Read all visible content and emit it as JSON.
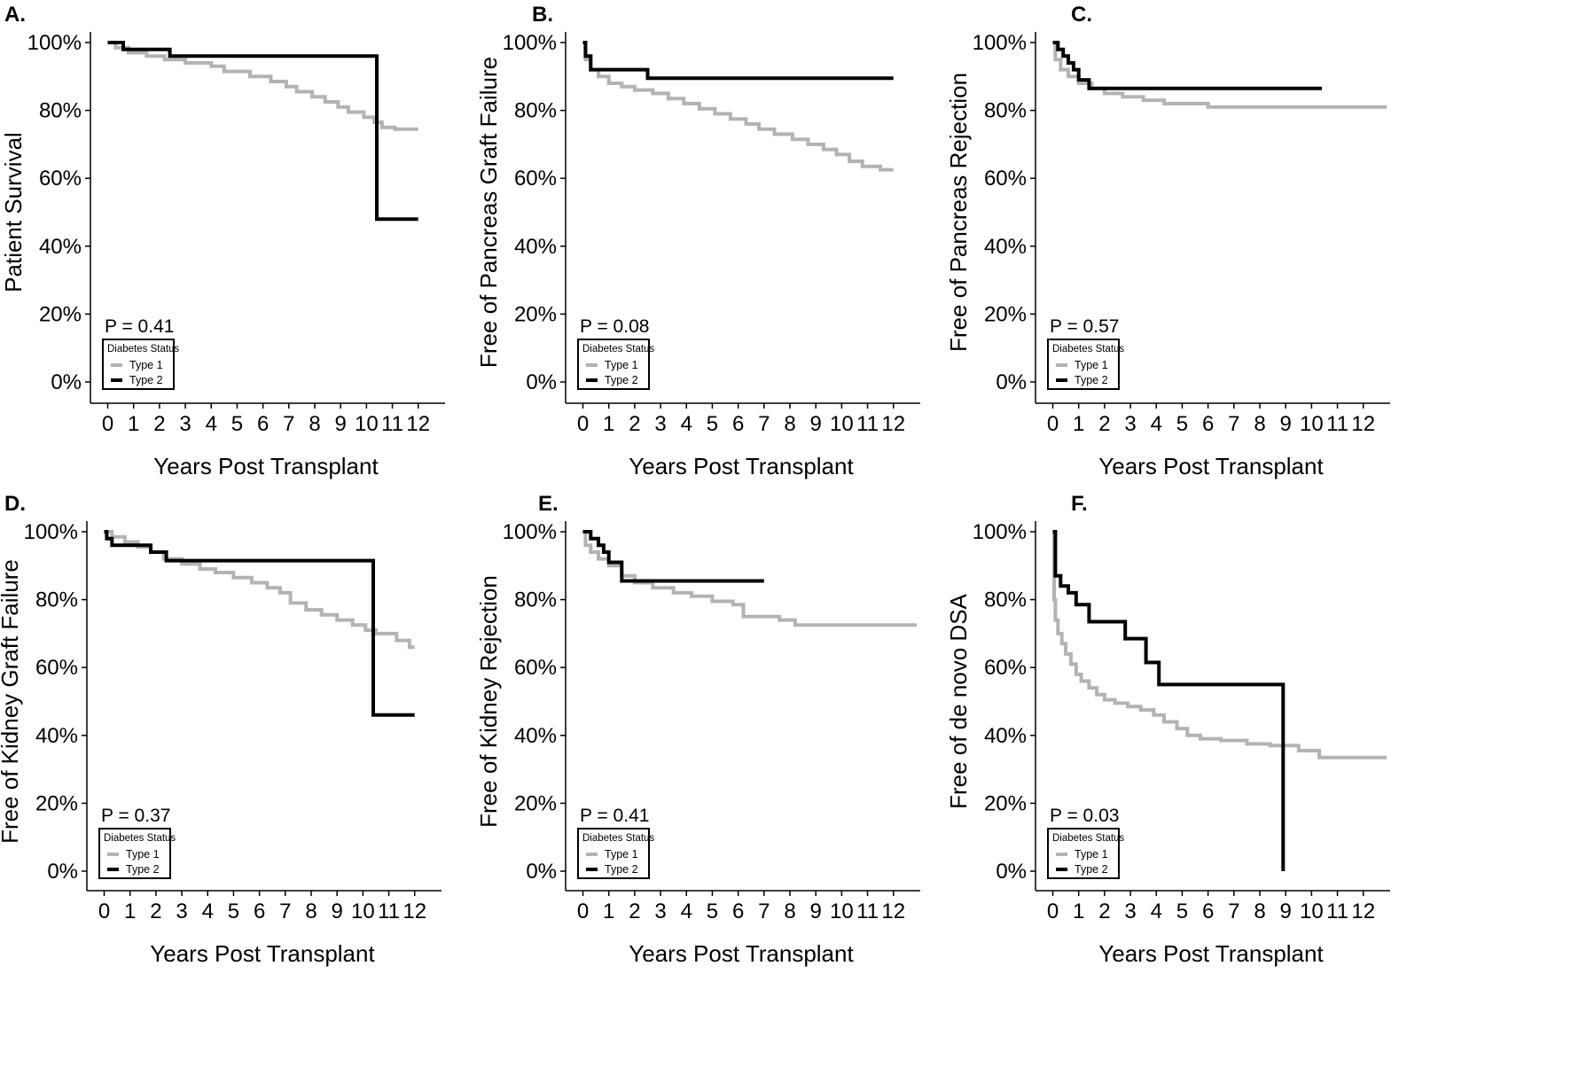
{
  "colors": {
    "type1": "#b3b3b3",
    "type2": "#000000"
  },
  "legend": {
    "title": "Diabetes Status",
    "labels": [
      "Type 1",
      "Type 2"
    ]
  },
  "chart_data": [
    {
      "type": "line",
      "step": true,
      "panel_label": "A.",
      "ylabel": "Patient Survival",
      "xlabel": "Years Post Transplant",
      "xticks": [
        "0",
        "1",
        "2",
        "3",
        "4",
        "5",
        "6",
        "7",
        "8",
        "9",
        "10",
        "11",
        "12"
      ],
      "yticks": [
        "0%",
        "20%",
        "40%",
        "60%",
        "80%",
        "100%"
      ],
      "xlim": [
        -0.6,
        12.9
      ],
      "ylim": [
        0,
        100
      ],
      "p_value": "P = 0.41",
      "series": [
        {
          "name": "Type 1",
          "x": [
            0,
            0.3,
            0.8,
            1.5,
            2.2,
            3,
            4,
            4.5,
            5.5,
            6.3,
            6.9,
            7.3,
            7.9,
            8.4,
            8.9,
            9.3,
            9.9,
            10.3,
            10.6,
            11.1,
            12
          ],
          "y": [
            100,
            98.5,
            97,
            96,
            95,
            94,
            93,
            91.5,
            90,
            88.5,
            87,
            85.5,
            84,
            82.5,
            81,
            79.5,
            78,
            76.5,
            75,
            74.5,
            74.5
          ]
        },
        {
          "name": "Type 2",
          "x": [
            0,
            0.6,
            2.4,
            10.4,
            12
          ],
          "y": [
            100,
            98,
            96,
            48,
            48
          ]
        }
      ]
    },
    {
      "type": "line",
      "step": true,
      "panel_label": "B.",
      "ylabel": "Free of Pancreas Graft Failure",
      "xlabel": "Years Post Transplant",
      "xticks": [
        "0",
        "1",
        "2",
        "3",
        "4",
        "5",
        "6",
        "7",
        "8",
        "9",
        "10",
        "11",
        "12"
      ],
      "yticks": [
        "0%",
        "20%",
        "40%",
        "60%",
        "80%",
        "100%"
      ],
      "xlim": [
        -0.6,
        12.9
      ],
      "ylim": [
        0,
        100
      ],
      "p_value": "P = 0.08",
      "series": [
        {
          "name": "Type 1",
          "x": [
            0,
            0.1,
            0.3,
            0.6,
            1,
            1.5,
            2,
            2.7,
            3.3,
            3.9,
            4.5,
            5.1,
            5.7,
            6.3,
            6.8,
            7.4,
            8.1,
            8.7,
            9.3,
            9.8,
            10.3,
            10.8,
            11.5,
            12
          ],
          "y": [
            100,
            95,
            92,
            90,
            88,
            87,
            86,
            85,
            83.5,
            82,
            80.5,
            79,
            77.5,
            76,
            74.5,
            73,
            71.5,
            70,
            68.5,
            67,
            65,
            63.5,
            62.5,
            62.5
          ]
        },
        {
          "name": "Type 2",
          "x": [
            0,
            0.1,
            0.3,
            2.5,
            12
          ],
          "y": [
            100,
            96,
            92,
            89.5,
            89.5
          ]
        }
      ]
    },
    {
      "type": "line",
      "step": true,
      "panel_label": "C.",
      "ylabel": "Free of Pancreas Rejection",
      "xlabel": "Years Post Transplant",
      "xticks": [
        "0",
        "1",
        "2",
        "3",
        "4",
        "5",
        "6",
        "7",
        "8",
        "9",
        "10",
        "11",
        "12"
      ],
      "yticks": [
        "0%",
        "20%",
        "40%",
        "60%",
        "80%",
        "100%"
      ],
      "xlim": [
        -0.6,
        12.9
      ],
      "ylim": [
        0,
        100
      ],
      "p_value": "P = 0.57",
      "series": [
        {
          "name": "Type 1",
          "x": [
            0,
            0.1,
            0.3,
            0.6,
            1,
            1.5,
            2,
            2.7,
            3.5,
            4.3,
            6,
            7,
            12.9
          ],
          "y": [
            100,
            95,
            92,
            90,
            88,
            86.5,
            85,
            84,
            83,
            82,
            81,
            81,
            81
          ]
        },
        {
          "name": "Type 2",
          "x": [
            0,
            0.2,
            0.4,
            0.6,
            0.8,
            1,
            1.4,
            10.4
          ],
          "y": [
            100,
            98,
            96,
            94,
            92,
            89,
            86.5,
            86.5
          ]
        }
      ]
    },
    {
      "type": "line",
      "step": true,
      "panel_label": "D.",
      "ylabel": "Free of Kidney Graft Failure",
      "xlabel": "Years Post Transplant",
      "xticks": [
        "0",
        "1",
        "2",
        "3",
        "4",
        "5",
        "6",
        "7",
        "8",
        "9",
        "10",
        "11",
        "12"
      ],
      "yticks": [
        "0%",
        "20%",
        "40%",
        "60%",
        "80%",
        "100%"
      ],
      "xlim": [
        -0.6,
        12.9
      ],
      "ylim": [
        0,
        100
      ],
      "p_value": "P = 0.37",
      "series": [
        {
          "name": "Type 1",
          "x": [
            0,
            0.3,
            0.8,
            1.3,
            1.8,
            2.3,
            3,
            3.7,
            4.3,
            5,
            5.7,
            6.3,
            6.8,
            7.2,
            7.8,
            8.4,
            9,
            9.6,
            10.1,
            10.5,
            11.3,
            11.8,
            12
          ],
          "y": [
            100,
            98.5,
            97,
            95.5,
            94,
            92,
            90.5,
            89,
            88,
            86.5,
            85,
            83.5,
            82,
            79,
            77,
            75.5,
            74,
            72.5,
            71,
            70,
            68,
            66,
            66
          ]
        },
        {
          "name": "Type 2",
          "x": [
            0,
            0.1,
            0.3,
            1.8,
            2.4,
            10.4,
            12
          ],
          "y": [
            100,
            98,
            96,
            94,
            91.5,
            46,
            46
          ]
        }
      ]
    },
    {
      "type": "line",
      "step": true,
      "panel_label": "E.",
      "ylabel": "Free of Kidney Rejection",
      "xlabel": "Years Post Transplant",
      "xticks": [
        "0",
        "1",
        "2",
        "3",
        "4",
        "5",
        "6",
        "7",
        "8",
        "9",
        "10",
        "11",
        "12"
      ],
      "yticks": [
        "0%",
        "20%",
        "40%",
        "60%",
        "80%",
        "100%"
      ],
      "xlim": [
        -0.6,
        12.9
      ],
      "ylim": [
        0,
        100
      ],
      "p_value": "P = 0.41",
      "series": [
        {
          "name": "Type 1",
          "x": [
            0,
            0.1,
            0.3,
            0.6,
            1,
            1.5,
            2,
            2.7,
            3.5,
            4.2,
            5,
            5.8,
            6.2,
            7,
            7.6,
            8.2,
            12.9
          ],
          "y": [
            100,
            96,
            94,
            92,
            90,
            87,
            85,
            83.5,
            82,
            81,
            79.5,
            78.5,
            75,
            75,
            74,
            72.5,
            72.5
          ]
        },
        {
          "name": "Type 2",
          "x": [
            0,
            0.3,
            0.6,
            0.8,
            1,
            1.5,
            7
          ],
          "y": [
            100,
            98,
            96,
            94,
            91,
            85.5,
            85.5
          ]
        }
      ]
    },
    {
      "type": "line",
      "step": true,
      "panel_label": "F.",
      "ylabel": "Free of de novo DSA",
      "xlabel": "Years Post Transplant",
      "xticks": [
        "0",
        "1",
        "2",
        "3",
        "4",
        "5",
        "6",
        "7",
        "8",
        "9",
        "10",
        "11",
        "12"
      ],
      "yticks": [
        "0%",
        "20%",
        "40%",
        "60%",
        "80%",
        "100%"
      ],
      "xlim": [
        -0.6,
        12.9
      ],
      "ylim": [
        0,
        100
      ],
      "p_value": "P = 0.03",
      "series": [
        {
          "name": "Type 1",
          "x": [
            0,
            0.05,
            0.1,
            0.2,
            0.35,
            0.5,
            0.7,
            0.9,
            1.1,
            1.4,
            1.7,
            2,
            2.4,
            2.9,
            3.4,
            3.9,
            4.3,
            4.8,
            5.2,
            5.7,
            6.5,
            7.5,
            8.4,
            9.5,
            10.3,
            12.9
          ],
          "y": [
            100,
            80,
            74,
            70,
            67,
            64,
            61,
            58,
            56,
            54,
            52,
            50.5,
            49.5,
            48.5,
            47.5,
            46,
            44,
            42,
            40,
            39,
            38.5,
            37.5,
            37,
            35.5,
            33.5,
            33.5
          ]
        },
        {
          "name": "Type 2",
          "x": [
            0,
            0.1,
            0.3,
            0.6,
            0.9,
            1.4,
            2.8,
            3.6,
            4.1,
            8.9
          ],
          "y": [
            100,
            87,
            84,
            82,
            78.5,
            73.5,
            68.5,
            61.5,
            55,
            0
          ]
        }
      ]
    }
  ]
}
